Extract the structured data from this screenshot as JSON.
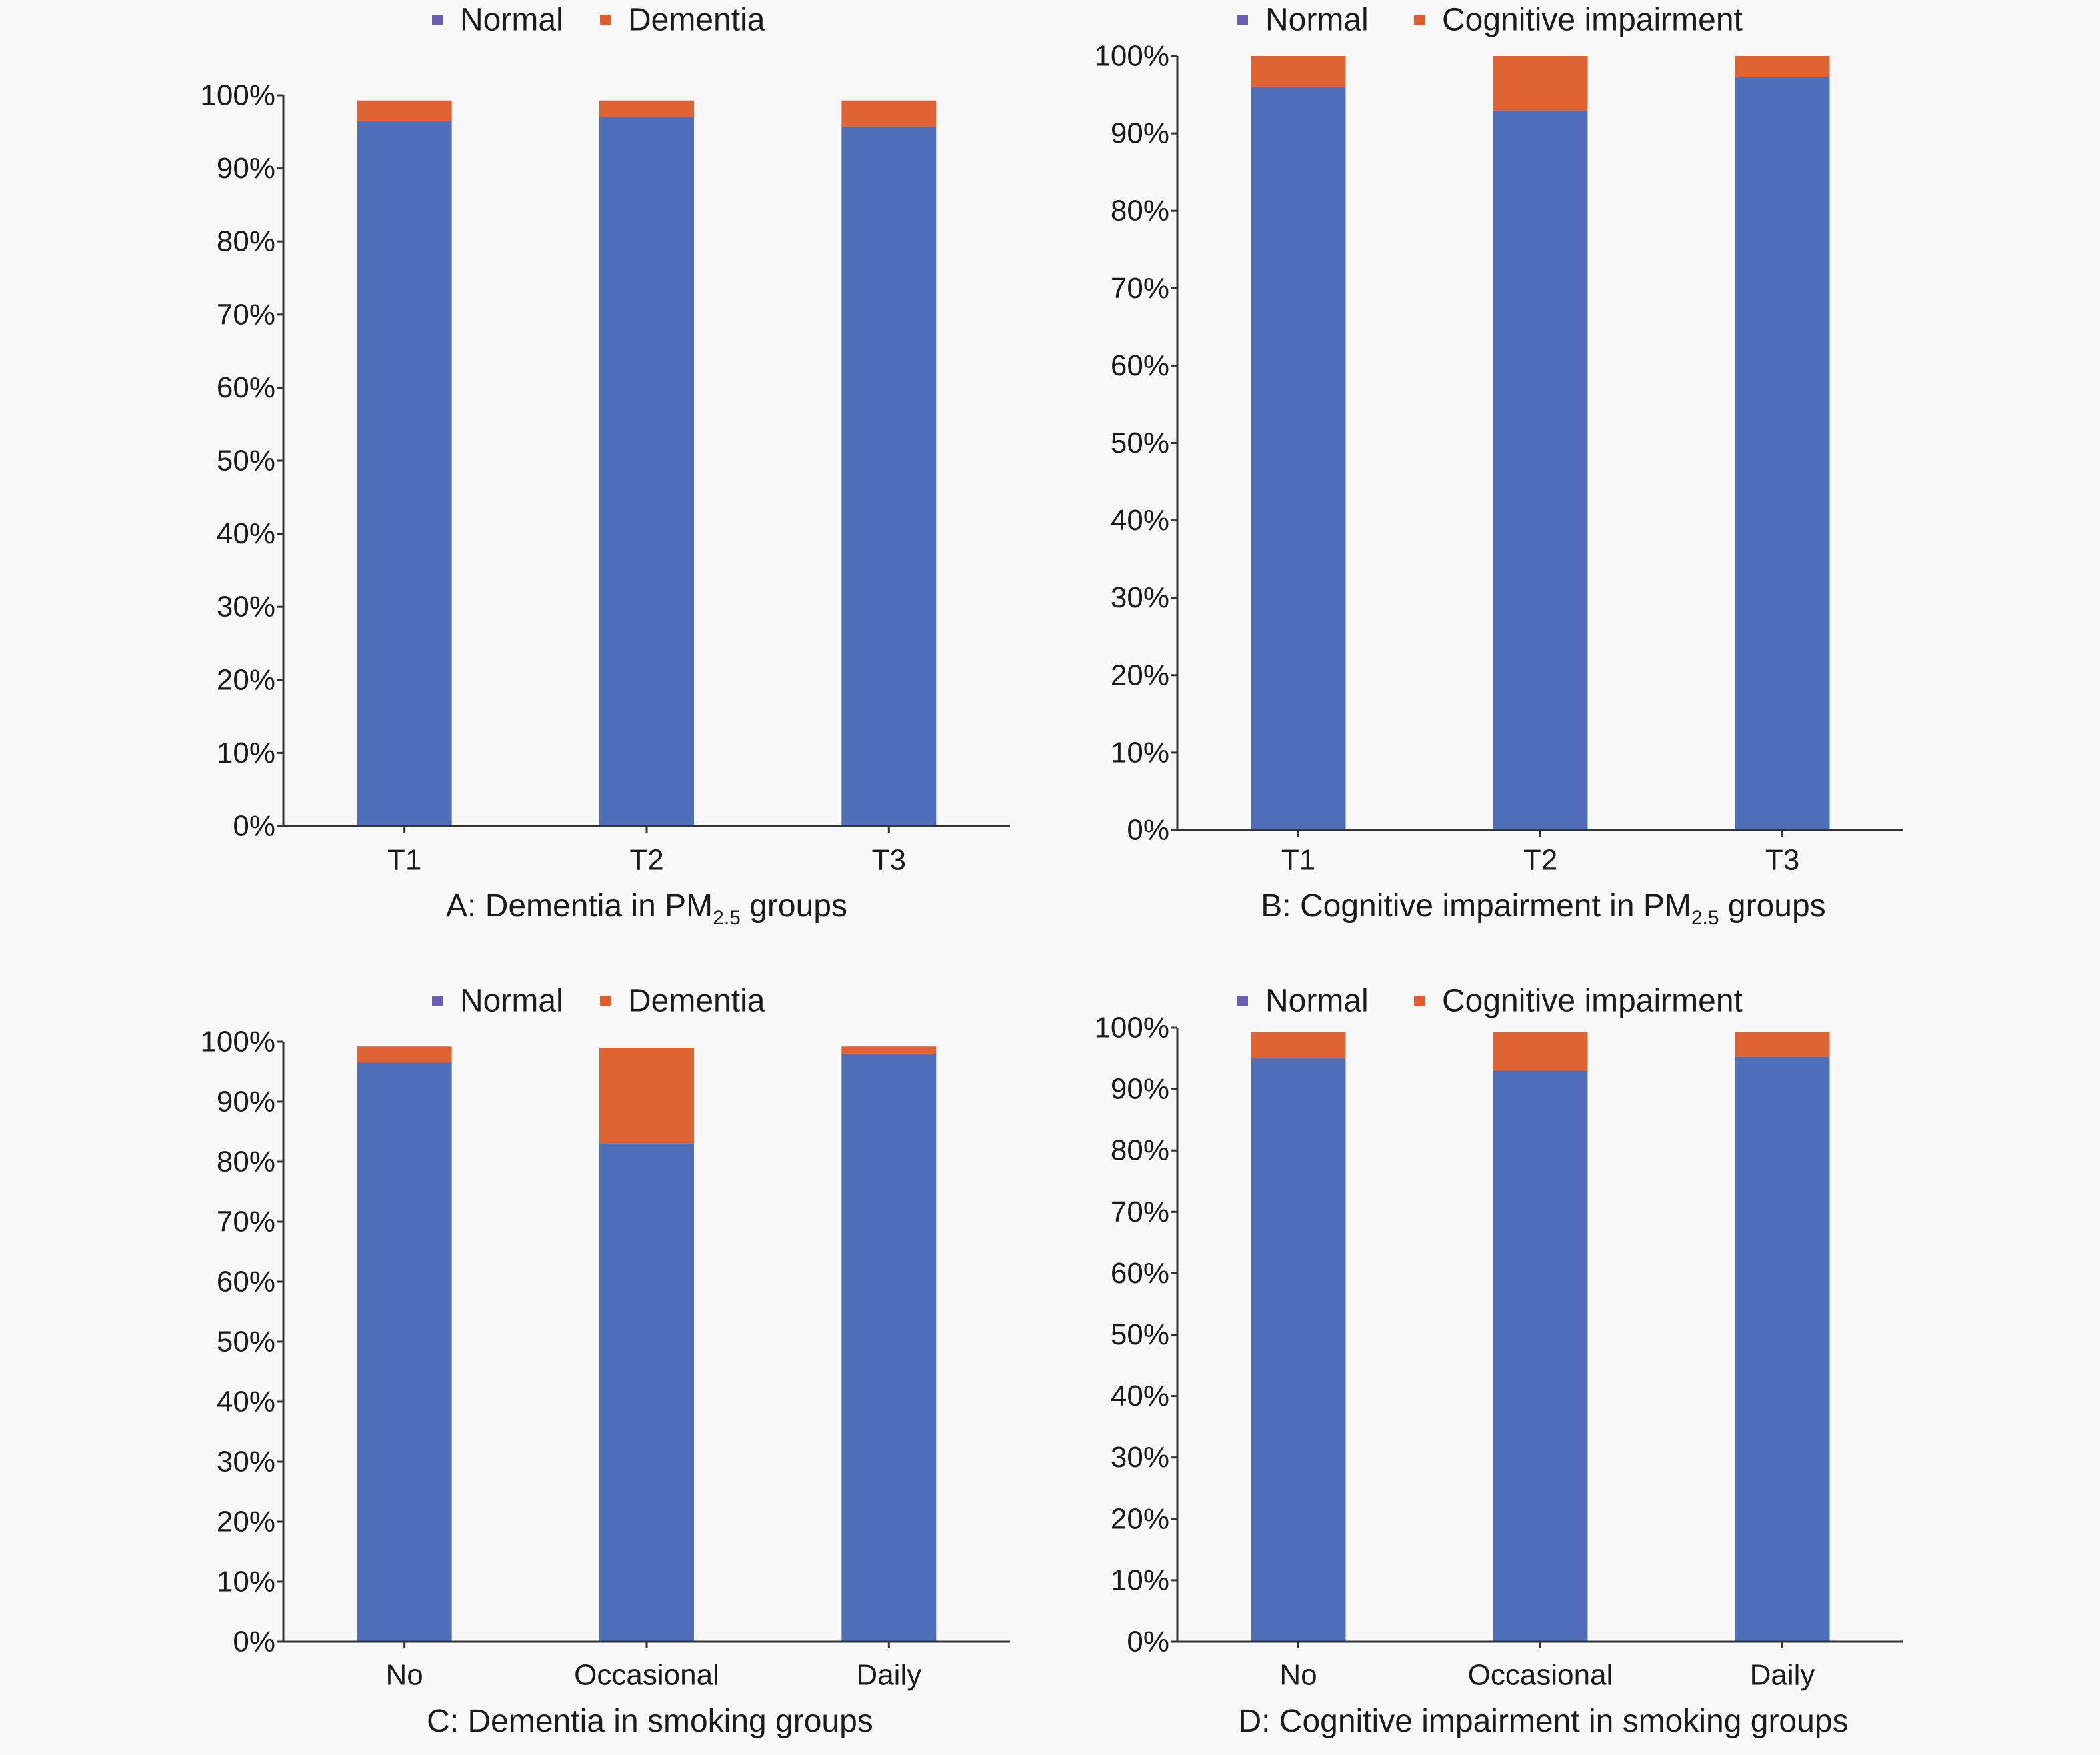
{
  "colors": {
    "normal": "#4f6eb8",
    "impaired": "#df6333",
    "legend_normal_marker": "#6a5fb5",
    "legend_impaired_marker": "#e05c2c",
    "axis": "#333333",
    "background": "#f8f8f8"
  },
  "chart_data": [
    {
      "id": "A",
      "type": "bar",
      "stacked": true,
      "caption": {
        "prefix": "A: Dementia in PM",
        "subscript": "2.5",
        "suffix": " groups"
      },
      "categories": [
        "T1",
        "T2",
        "T3"
      ],
      "series": [
        {
          "name": "Normal",
          "values": [
            96.5,
            97.0,
            95.7
          ]
        },
        {
          "name": "Dementia",
          "values": [
            2.8,
            2.3,
            3.6
          ]
        }
      ],
      "ylim": [
        0,
        100
      ],
      "yticks": [
        "0%",
        "10%",
        "20%",
        "30%",
        "40%",
        "50%",
        "60%",
        "70%",
        "80%",
        "90%",
        "100%"
      ],
      "legend": "top",
      "grid": false
    },
    {
      "id": "B",
      "type": "bar",
      "stacked": true,
      "caption": {
        "prefix": "B: Cognitive impairment in PM",
        "subscript": "2.5",
        "suffix": " groups"
      },
      "categories": [
        "T1",
        "T2",
        "T3"
      ],
      "series": [
        {
          "name": "Normal",
          "values": [
            96.0,
            93.0,
            97.3
          ]
        },
        {
          "name": "Cognitive impairment",
          "values": [
            4.0,
            7.0,
            2.7
          ]
        }
      ],
      "ylim": [
        0,
        100
      ],
      "yticks": [
        "0%",
        "10%",
        "20%",
        "30%",
        "40%",
        "50%",
        "60%",
        "70%",
        "80%",
        "90%",
        "100%"
      ],
      "legend": "top",
      "grid": false
    },
    {
      "id": "C",
      "type": "bar",
      "stacked": true,
      "caption": {
        "prefix": "C: Dementia in smoking groups",
        "subscript": "",
        "suffix": ""
      },
      "categories": [
        "No",
        "Occasional",
        "Daily"
      ],
      "series": [
        {
          "name": "Normal",
          "values": [
            96.5,
            83.0,
            98.0
          ]
        },
        {
          "name": "Dementia",
          "values": [
            2.7,
            16.0,
            1.2
          ]
        }
      ],
      "ylim": [
        0,
        100
      ],
      "yticks": [
        "0%",
        "10%",
        "20%",
        "30%",
        "40%",
        "50%",
        "60%",
        "70%",
        "80%",
        "90%",
        "100%"
      ],
      "legend": "top",
      "grid": false
    },
    {
      "id": "D",
      "type": "bar",
      "stacked": true,
      "caption": {
        "prefix": "D: Cognitive impairment  in smoking groups",
        "subscript": "",
        "suffix": ""
      },
      "categories": [
        "No",
        "Occasional",
        "Daily"
      ],
      "series": [
        {
          "name": "Normal",
          "values": [
            95.0,
            93.0,
            95.3
          ]
        },
        {
          "name": "Cognitive impairment",
          "values": [
            4.3,
            6.3,
            4.0
          ]
        }
      ],
      "ylim": [
        0,
        100
      ],
      "yticks": [
        "0%",
        "10%",
        "20%",
        "30%",
        "40%",
        "50%",
        "60%",
        "70%",
        "80%",
        "90%",
        "100%"
      ],
      "legend": "top",
      "grid": false
    }
  ]
}
